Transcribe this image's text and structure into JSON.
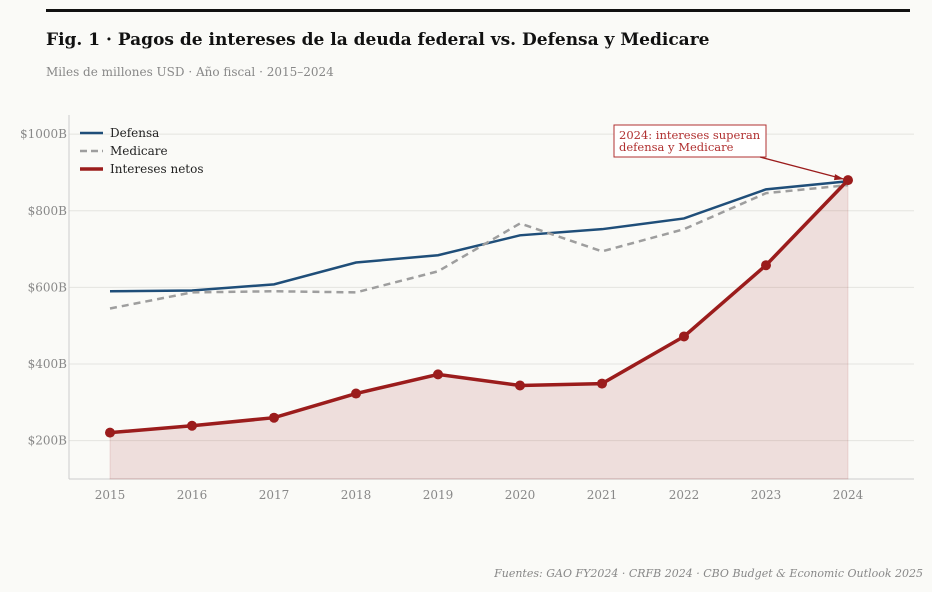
{
  "title": "Fig. 1  ·  Pagos de intereses de la deuda federal vs. Defensa y Medicare",
  "subtitle": "Miles de millones USD · Año fiscal · 2015–2024",
  "source": "Fuentes: GAO FY2024 · CRFB 2024 · CBO Budget & Economic Outlook 2025",
  "chart_data": {
    "type": "line",
    "x": [
      2015,
      2016,
      2017,
      2018,
      2019,
      2020,
      2021,
      2022,
      2023,
      2024
    ],
    "xticks": [
      "2015",
      "2016",
      "2017",
      "2018",
      "2019",
      "2020",
      "2021",
      "2022",
      "2023",
      "2024"
    ],
    "yticks": [
      "$200B",
      "$400B",
      "$600B",
      "$800B",
      "$1000B"
    ],
    "ytick_values": [
      200,
      400,
      600,
      800,
      1000
    ],
    "ylim": [
      100,
      1050
    ],
    "grid": true,
    "legend": "top-left",
    "series": [
      {
        "name": "Defensa",
        "color": "#1f4e79",
        "style": "solid",
        "values": [
          590,
          592,
          608,
          665,
          684,
          736,
          752,
          780,
          856,
          877
        ]
      },
      {
        "name": "Medicare",
        "color": "#9e9e9e",
        "style": "dashed",
        "values": [
          545,
          587,
          590,
          587,
          642,
          767,
          694,
          752,
          846,
          867
        ]
      },
      {
        "name": "Intereses netos",
        "color": "#9b1c1c",
        "style": "solid-markers-area",
        "values": [
          221,
          239,
          260,
          323,
          373,
          344,
          349,
          472,
          658,
          880
        ]
      }
    ],
    "annotation": {
      "lines": [
        "2024: intereses superan",
        "defensa y Medicare"
      ],
      "x": 2024,
      "y": 880
    }
  }
}
